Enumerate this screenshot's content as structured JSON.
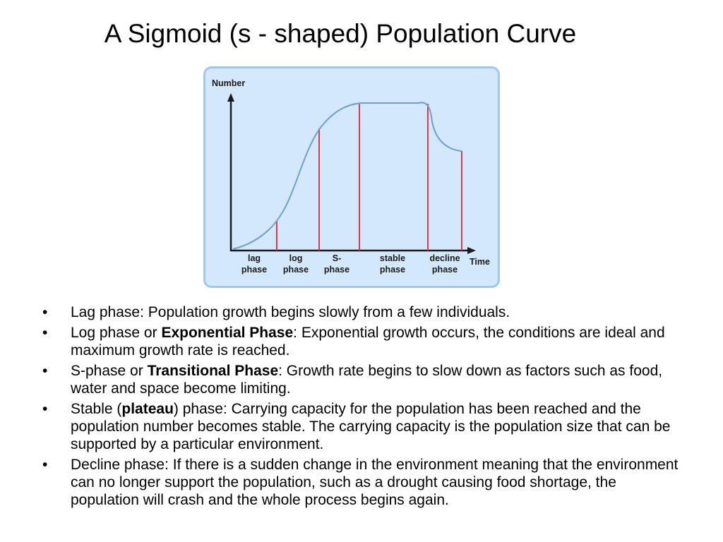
{
  "title": "A Sigmoid (s - shaped) Population Curve",
  "diagram": {
    "y_axis_label": "Number",
    "x_axis_label": "Time",
    "phases": [
      {
        "line1": "lag",
        "line2": "phase"
      },
      {
        "line1": "log",
        "line2": "phase"
      },
      {
        "line1": "S-",
        "line2": "phase"
      },
      {
        "line1": "stable",
        "line2": "phase"
      },
      {
        "line1": "decline",
        "line2": "phase"
      }
    ],
    "colors": {
      "panel_fill": "#d3e8fb",
      "panel_border": "#9cc9f3",
      "curve": "#6e9fcf",
      "markers": "#e8344a",
      "axes": "#1a1a1a"
    }
  },
  "bullets": [
    {
      "pre": "Lag phase: Population growth begins slowly from a few individuals.",
      "bold": "",
      "post": ""
    },
    {
      "pre": "Log phase or ",
      "bold": "Exponential Phase",
      "post": ": Exponential growth occurs, the conditions are ideal and maximum growth rate is reached."
    },
    {
      "pre": "S-phase or ",
      "bold": "Transitional Phase",
      "post": ": Growth rate begins to slow down as factors such as food, water and space become limiting."
    },
    {
      "pre": "Stable (",
      "bold": "plateau",
      "post": ") phase: Carrying capacity for the population has been reached and the population number becomes stable. The carrying capacity is the population size that can be supported by a particular environment."
    },
    {
      "pre": "Decline phase: If there is a sudden change in the environment meaning that the environment can no longer support the population, such as a drought causing food shortage, the population will crash and the whole process begins again.",
      "bold": "",
      "post": ""
    }
  ]
}
